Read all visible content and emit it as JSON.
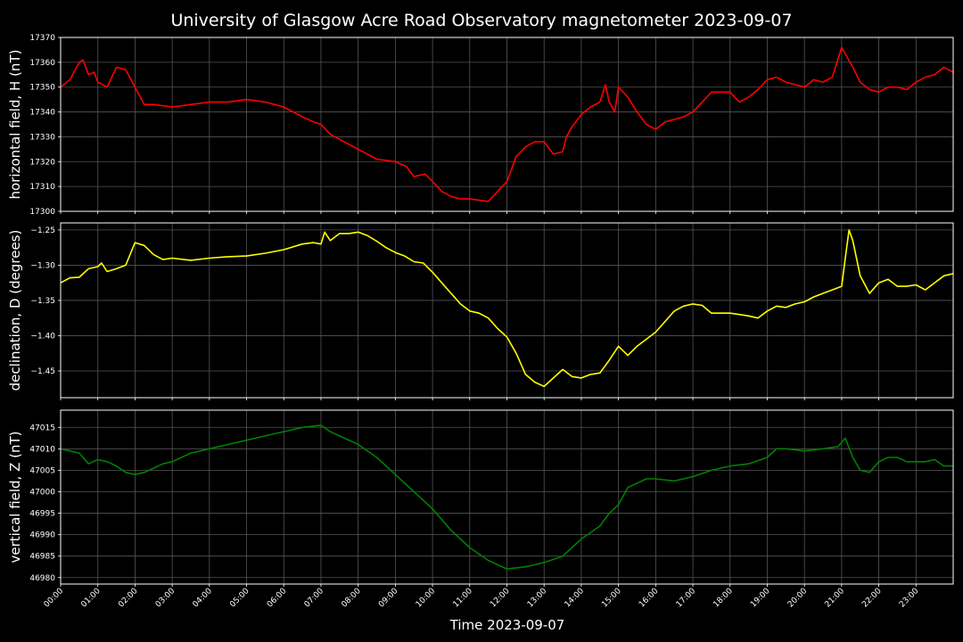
{
  "chart_data": {
    "type": "line",
    "title": "University of Glasgow Acre Road Observatory magnetometer 2023-09-07",
    "xlabel": "Time 2023-09-07",
    "x_ticks": [
      "00:00",
      "01:00",
      "02:00",
      "03:00",
      "04:00",
      "05:00",
      "06:00",
      "07:00",
      "08:00",
      "09:00",
      "10:00",
      "11:00",
      "12:00",
      "13:00",
      "14:00",
      "15:00",
      "16:00",
      "17:00",
      "18:00",
      "19:00",
      "20:00",
      "21:00",
      "22:00",
      "23:00"
    ],
    "xlim_hours": [
      0,
      24
    ],
    "grid": true,
    "background": "#000000",
    "panels": [
      {
        "ylabel": "horizontal field, H (nT)",
        "color": "#ff0000",
        "ylim": [
          17300,
          17370
        ],
        "y_ticks": [
          17300,
          17310,
          17320,
          17330,
          17340,
          17350,
          17360,
          17370
        ],
        "y_tick_labels": [
          "17300",
          "17310",
          "17320",
          "17330",
          "17340",
          "17350",
          "17360",
          "17370"
        ],
        "x": [
          0,
          0.25,
          0.5,
          0.6,
          0.75,
          0.9,
          1.0,
          1.25,
          1.5,
          1.75,
          2.0,
          2.25,
          2.5,
          3.0,
          3.5,
          4.0,
          4.5,
          5.0,
          5.5,
          6.0,
          6.5,
          6.8,
          7.0,
          7.25,
          7.5,
          8.0,
          8.5,
          9.0,
          9.3,
          9.5,
          9.8,
          10.0,
          10.25,
          10.5,
          10.75,
          11.0,
          11.5,
          11.75,
          12.0,
          12.25,
          12.5,
          12.75,
          13.0,
          13.25,
          13.5,
          13.6,
          13.75,
          14.0,
          14.25,
          14.5,
          14.65,
          14.75,
          14.9,
          15.0,
          15.25,
          15.5,
          15.75,
          16.0,
          16.25,
          16.5,
          16.75,
          17.0,
          17.25,
          17.5,
          17.75,
          18.0,
          18.25,
          18.5,
          18.75,
          19.0,
          19.25,
          19.5,
          19.75,
          20.0,
          20.25,
          20.5,
          20.75,
          21.0,
          21.15,
          21.3,
          21.5,
          21.75,
          22.0,
          22.25,
          22.5,
          22.75,
          23.0,
          23.25,
          23.5,
          23.75,
          24.0
        ],
        "y": [
          17350,
          17353,
          17360,
          17361,
          17355,
          17356,
          17352,
          17350,
          17358,
          17357,
          17350,
          17343,
          17343,
          17342,
          17343,
          17344,
          17344,
          17345,
          17344,
          17342,
          17338,
          17336,
          17335,
          17331,
          17329,
          17325,
          17321,
          17320,
          17318,
          17314,
          17315,
          17312,
          17308,
          17306,
          17305,
          17305,
          17304,
          17308,
          17312,
          17322,
          17326,
          17328,
          17328,
          17323,
          17324,
          17330,
          17334,
          17339,
          17342,
          17344,
          17351,
          17344,
          17340,
          17350,
          17346,
          17340,
          17335,
          17333,
          17336,
          17337,
          17338,
          17340,
          17344,
          17348,
          17348,
          17348,
          17344,
          17346,
          17349,
          17353,
          17354,
          17352,
          17351,
          17350,
          17353,
          17352,
          17354,
          17366,
          17362,
          17358,
          17352,
          17349,
          17348,
          17350,
          17350,
          17349,
          17352,
          17354,
          17355,
          17358,
          17356
        ]
      },
      {
        "ylabel": "declination, D (degrees)",
        "color": "#ffff00",
        "ylim": [
          -1.488,
          -1.24
        ],
        "y_ticks": [
          -1.45,
          -1.4,
          -1.35,
          -1.3,
          -1.25
        ],
        "y_tick_labels": [
          "−1.45",
          "−1.40",
          "−1.35",
          "−1.30",
          "−1.25"
        ],
        "x": [
          0,
          0.25,
          0.5,
          0.75,
          1.0,
          1.1,
          1.25,
          1.5,
          1.75,
          2.0,
          2.25,
          2.5,
          2.75,
          3.0,
          3.5,
          4.0,
          4.5,
          5.0,
          5.5,
          6.0,
          6.5,
          6.8,
          7.0,
          7.1,
          7.25,
          7.5,
          7.75,
          8.0,
          8.25,
          8.5,
          8.75,
          9.0,
          9.25,
          9.5,
          9.75,
          10.0,
          10.25,
          10.5,
          10.75,
          11.0,
          11.25,
          11.5,
          11.75,
          12.0,
          12.25,
          12.5,
          12.75,
          13.0,
          13.25,
          13.5,
          13.75,
          14.0,
          14.25,
          14.5,
          14.75,
          15.0,
          15.25,
          15.5,
          15.75,
          16.0,
          16.25,
          16.5,
          16.75,
          17.0,
          17.25,
          17.5,
          17.75,
          18.0,
          18.25,
          18.5,
          18.75,
          19.0,
          19.25,
          19.5,
          19.75,
          20.0,
          20.25,
          20.5,
          20.75,
          21.0,
          21.1,
          21.2,
          21.3,
          21.5,
          21.75,
          22.0,
          22.25,
          22.5,
          22.75,
          23.0,
          23.25,
          23.5,
          23.75,
          24.0
        ],
        "y": [
          -1.325,
          -1.318,
          -1.317,
          -1.305,
          -1.302,
          -1.297,
          -1.309,
          -1.305,
          -1.3,
          -1.268,
          -1.272,
          -1.285,
          -1.292,
          -1.29,
          -1.293,
          -1.29,
          -1.288,
          -1.287,
          -1.283,
          -1.278,
          -1.27,
          -1.268,
          -1.27,
          -1.253,
          -1.265,
          -1.255,
          -1.255,
          -1.253,
          -1.258,
          -1.266,
          -1.275,
          -1.282,
          -1.287,
          -1.295,
          -1.297,
          -1.31,
          -1.325,
          -1.34,
          -1.355,
          -1.365,
          -1.368,
          -1.375,
          -1.39,
          -1.402,
          -1.425,
          -1.455,
          -1.466,
          -1.472,
          -1.46,
          -1.448,
          -1.458,
          -1.46,
          -1.455,
          -1.453,
          -1.435,
          -1.415,
          -1.428,
          -1.415,
          -1.405,
          -1.395,
          -1.38,
          -1.365,
          -1.358,
          -1.355,
          -1.357,
          -1.368,
          -1.368,
          -1.368,
          -1.37,
          -1.372,
          -1.375,
          -1.365,
          -1.358,
          -1.36,
          -1.355,
          -1.352,
          -1.345,
          -1.34,
          -1.335,
          -1.33,
          -1.29,
          -1.25,
          -1.265,
          -1.315,
          -1.34,
          -1.325,
          -1.32,
          -1.33,
          -1.33,
          -1.328,
          -1.335,
          -1.325,
          -1.315,
          -1.312
        ]
      },
      {
        "ylabel": "vertical field, Z (nT)",
        "color": "#008000",
        "ylim": [
          46978.5,
          47019
        ],
        "y_ticks": [
          46980,
          46985,
          46990,
          46995,
          47000,
          47005,
          47010,
          47015
        ],
        "y_tick_labels": [
          "46980",
          "46985",
          "46990",
          "46995",
          "47000",
          "47005",
          "47010",
          "47015"
        ],
        "x": [
          0,
          0.25,
          0.5,
          0.75,
          1.0,
          1.25,
          1.5,
          1.75,
          2.0,
          2.25,
          2.5,
          2.75,
          3.0,
          3.5,
          4.0,
          4.5,
          5.0,
          5.5,
          6.0,
          6.5,
          7.0,
          7.25,
          7.5,
          8.0,
          8.5,
          9.0,
          9.5,
          10.0,
          10.5,
          11.0,
          11.5,
          12.0,
          12.5,
          13.0,
          13.5,
          13.75,
          14.0,
          14.5,
          14.75,
          15.0,
          15.25,
          15.5,
          15.75,
          16.0,
          16.5,
          17.0,
          17.5,
          18.0,
          18.5,
          19.0,
          19.25,
          19.5,
          20.0,
          20.5,
          20.9,
          21.1,
          21.3,
          21.5,
          21.75,
          22.0,
          22.25,
          22.5,
          22.75,
          23.0,
          23.25,
          23.5,
          23.75,
          24.0
        ],
        "y": [
          47010,
          47009.5,
          47009,
          47006.5,
          47007.5,
          47007,
          47006,
          47004.5,
          47004,
          47004.5,
          47005.5,
          47006.5,
          47007,
          47009,
          47010,
          47011,
          47012,
          47013,
          47014,
          47015,
          47015.5,
          47014,
          47013,
          47011,
          47008,
          47004,
          47000,
          46996,
          46991,
          46987,
          46984,
          46982,
          46982.5,
          46983.5,
          46985,
          46987,
          46989,
          46992,
          46995,
          46997,
          47001,
          47002,
          47003,
          47003,
          47002.5,
          47003.5,
          47005,
          47006,
          47006.5,
          47008,
          47010,
          47010,
          47009.5,
          47010,
          47010.5,
          47012.5,
          47008,
          47005,
          47004.5,
          47007,
          47008,
          47008,
          47007,
          47007,
          47007,
          47007.5,
          47006,
          47006
        ]
      }
    ]
  }
}
